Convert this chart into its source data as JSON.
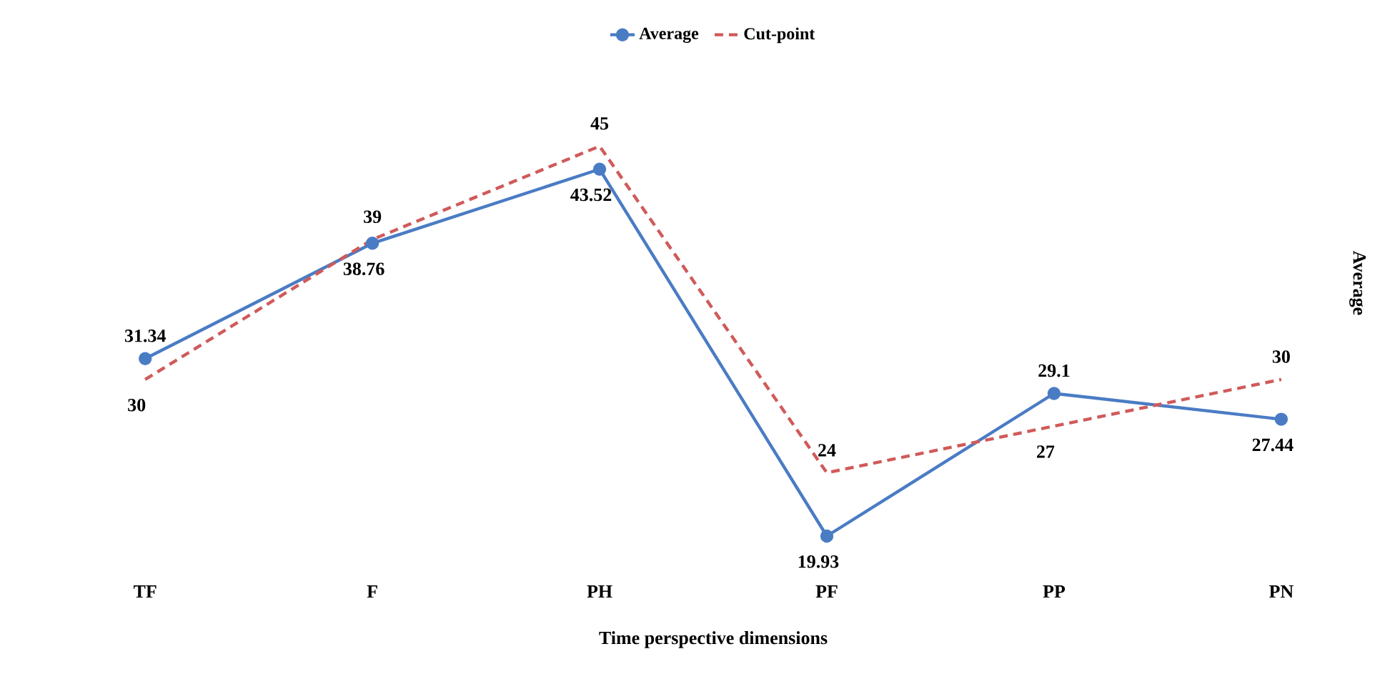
{
  "chart_data": {
    "type": "line",
    "xlabel": "Time perspective dimensions",
    "ylabel": "Average",
    "categories": [
      "TF",
      "F",
      "PH",
      "PF",
      "PP",
      "PN"
    ],
    "series": [
      {
        "name": "Average",
        "color": "#4a7cc4",
        "values": [
          31.34,
          38.76,
          43.52,
          19.93,
          29.1,
          27.44
        ],
        "marker": "circle",
        "line_style": "solid"
      },
      {
        "name": "Cut-point",
        "color": "#d05a5a",
        "values": [
          30,
          39,
          45,
          24,
          27,
          30
        ],
        "marker": "none",
        "line_style": "dashed"
      }
    ],
    "tick_labels": "x",
    "data_labels": true,
    "legend": "top",
    "grid": false
  }
}
